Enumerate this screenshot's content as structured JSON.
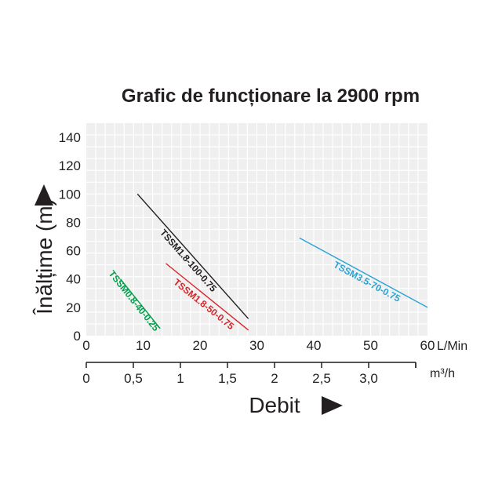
{
  "chart_data": {
    "type": "line",
    "title": "Grafic de funcționare la 2900 rpm",
    "xlabel": "Debit",
    "ylabel": "Înălțime (m)",
    "x_unit": "L/Min",
    "x2_unit": "m³/h",
    "xlim": [
      0,
      60
    ],
    "ylim": [
      0,
      150
    ],
    "x_ticks": [
      "0",
      "10",
      "20",
      "30",
      "40",
      "50",
      "60"
    ],
    "y_ticks": [
      "0",
      "20",
      "40",
      "60",
      "80",
      "100",
      "120",
      "140"
    ],
    "x2_ticks": [
      "0",
      "0,5",
      "1",
      "1,5",
      "2",
      "2,5",
      "3,0"
    ],
    "x2_tick_values": [
      0,
      0.5,
      1,
      1.5,
      2,
      2.5,
      3.0
    ],
    "grid": true,
    "colors": {
      "grid_background": "#efefef",
      "grid_line": "#ffffff",
      "text": "#231f20",
      "arrow": "#231f20"
    },
    "series": [
      {
        "name": "TSSM0.8-40-0.25",
        "color": "#00a04b",
        "x": [
          6,
          13
        ],
        "y": [
          40,
          5
        ]
      },
      {
        "name": "TSSM1.8-100-0.75",
        "color": "#231f20",
        "x": [
          9,
          28.5
        ],
        "y": [
          100,
          12
        ]
      },
      {
        "name": "TSSM1.8-50-0.75",
        "color": "#d6262b",
        "x": [
          14,
          28.5
        ],
        "y": [
          51,
          4
        ]
      },
      {
        "name": "TSSM3.5-70-0.75",
        "color": "#2aa3d4",
        "x": [
          37.5,
          60
        ],
        "y": [
          69,
          20
        ]
      }
    ]
  }
}
